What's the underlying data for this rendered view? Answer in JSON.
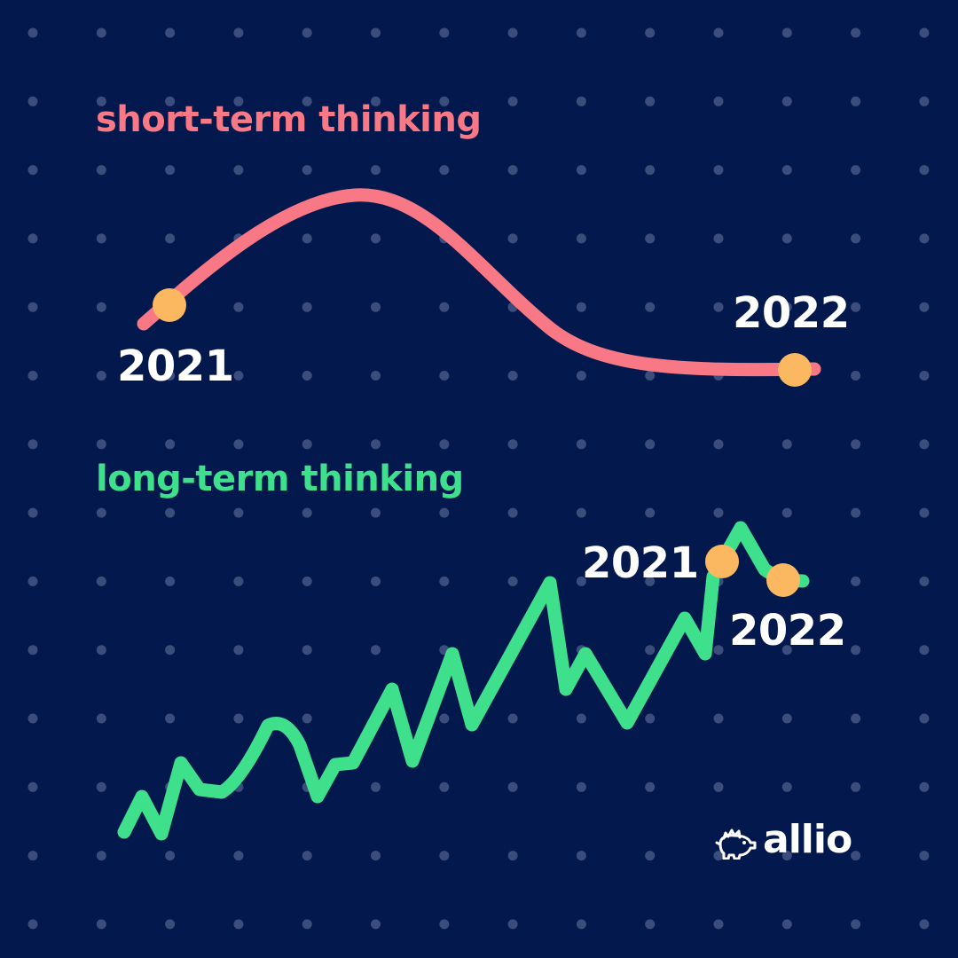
{
  "colors": {
    "background": "#03194d",
    "dots": "#3b4d7c",
    "short_term": "#f97885",
    "long_term": "#3fe08c",
    "markers": "#fbb861",
    "text": "#ffffff"
  },
  "short_term": {
    "heading": "short-term thinking",
    "start_year": "2021",
    "end_year": "2022"
  },
  "long_term": {
    "heading": "long-term thinking",
    "start_year": "2021",
    "end_year": "2022"
  },
  "brand": {
    "name": "allio",
    "logo_icon": "piggy-bank-icon"
  }
}
